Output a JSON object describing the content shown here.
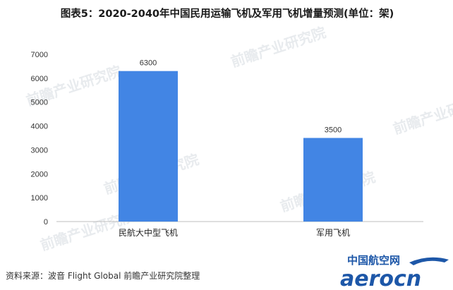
{
  "title": "图表5：2020-2040年中国民用运输飞机及军用飞机增量预测(单位：架)",
  "watermark": {
    "text": "前瞻产业研究院"
  },
  "source": "资料来源：波音 Flight Global   前瞻产业研究院整理",
  "logo": {
    "cn_name": "中国航空网",
    "latin": "aerocn"
  },
  "colors": {
    "bar": "#4285e4",
    "axis": "#bfbfbf"
  },
  "chart_data": {
    "type": "bar",
    "title": "图表5：2020-2040年中国民用运输飞机及军用飞机增量预测(单位：架)",
    "categories": [
      "民航大中型飞机",
      "军用飞机"
    ],
    "values": [
      6300,
      3500
    ],
    "data_labels": [
      "6300",
      "3500"
    ],
    "yticks": [
      "0",
      "1000",
      "2000",
      "3000",
      "4000",
      "5000",
      "6000",
      "7000"
    ],
    "ylim": [
      0,
      7000
    ],
    "grid": false,
    "legend": "none"
  }
}
